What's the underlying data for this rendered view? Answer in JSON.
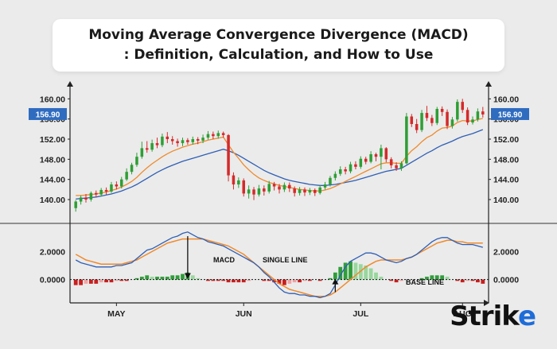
{
  "title": {
    "line1": "Moving Average Convergence Divergence (MACD)",
    "line2": ": Definition, Calculation, and How to Use"
  },
  "logo": {
    "text_main": "Strik",
    "text_accent": "e"
  },
  "colors": {
    "up": "#2e9e35",
    "down": "#d42a2a",
    "fast_line": "#ef8a2c",
    "slow_line": "#2f5fb5",
    "hist_up_strong": "#2f9e3a",
    "hist_up_weak": "#98d79d",
    "hist_down_strong": "#c81f1f",
    "hist_down_weak": "#f2a3a3",
    "badge": "#2f6cc0"
  },
  "chart_data": {
    "type": "candlestick",
    "price_panel": {
      "ylim": [
        137,
        161
      ],
      "left_ticks": [
        "160.00",
        "156.00",
        "152.00",
        "148.00",
        "144.00",
        "140.00"
      ],
      "right_ticks": [
        "160.00",
        "156.00",
        "152.00",
        "148.00",
        "144.00",
        "140.00"
      ],
      "last_price_label": "156.90",
      "candles": [
        [
          138.3,
          139.6,
          139.9,
          137.6
        ],
        [
          139.6,
          140.4,
          140.8,
          139.0
        ],
        [
          140.4,
          140.0,
          141.1,
          139.4
        ],
        [
          140.0,
          141.3,
          141.6,
          139.6
        ],
        [
          141.3,
          141.0,
          141.8,
          140.4
        ],
        [
          141.0,
          141.9,
          142.3,
          140.6
        ],
        [
          141.9,
          141.6,
          142.4,
          141.0
        ],
        [
          141.6,
          143.0,
          143.5,
          141.3
        ],
        [
          143.0,
          142.6,
          143.6,
          142.0
        ],
        [
          142.6,
          144.0,
          144.5,
          142.2
        ],
        [
          144.0,
          145.5,
          146.2,
          143.7
        ],
        [
          145.5,
          146.9,
          147.3,
          145.0
        ],
        [
          146.9,
          148.5,
          149.3,
          146.5
        ],
        [
          148.5,
          150.2,
          151.5,
          148.1
        ],
        [
          150.2,
          149.9,
          151.6,
          149.3
        ],
        [
          149.9,
          151.2,
          151.9,
          149.5
        ],
        [
          151.2,
          150.8,
          152.3,
          150.2
        ],
        [
          150.8,
          152.5,
          153.1,
          150.4
        ],
        [
          152.5,
          152.0,
          153.4,
          151.2
        ],
        [
          152.0,
          151.6,
          152.6,
          150.9
        ],
        [
          151.6,
          151.2,
          152.1,
          150.5
        ],
        [
          151.2,
          151.8,
          152.3,
          150.6
        ],
        [
          151.8,
          151.4,
          152.2,
          150.9
        ],
        [
          151.4,
          152.0,
          152.5,
          150.9
        ],
        [
          152.0,
          151.7,
          152.4,
          151.0
        ],
        [
          151.7,
          152.3,
          152.9,
          151.2
        ],
        [
          152.3,
          153.0,
          153.6,
          151.9
        ],
        [
          153.0,
          152.6,
          153.5,
          152.0
        ],
        [
          152.6,
          153.2,
          153.7,
          152.1
        ],
        [
          153.2,
          152.8,
          153.5,
          152.3
        ],
        [
          152.8,
          144.8,
          153.0,
          143.6
        ],
        [
          144.8,
          143.0,
          145.4,
          142.0
        ],
        [
          143.0,
          143.8,
          144.4,
          142.3
        ],
        [
          143.8,
          141.2,
          144.2,
          140.6
        ],
        [
          141.2,
          142.0,
          142.8,
          140.2
        ],
        [
          142.0,
          141.0,
          142.5,
          139.9
        ],
        [
          141.0,
          142.2,
          142.9,
          140.6
        ],
        [
          142.2,
          141.6,
          142.8,
          140.8
        ],
        [
          141.6,
          143.1,
          143.7,
          141.2
        ],
        [
          143.1,
          142.6,
          143.5,
          141.8
        ],
        [
          142.6,
          142.0,
          143.1,
          141.2
        ],
        [
          142.0,
          142.9,
          143.4,
          141.5
        ],
        [
          142.9,
          142.2,
          143.4,
          141.5
        ],
        [
          142.2,
          141.3,
          142.6,
          140.6
        ],
        [
          141.3,
          142.0,
          142.5,
          140.8
        ],
        [
          142.0,
          141.4,
          142.4,
          140.7
        ],
        [
          141.4,
          141.9,
          142.3,
          140.9
        ],
        [
          141.9,
          141.3,
          142.2,
          140.7
        ],
        [
          141.3,
          142.4,
          142.9,
          141.0
        ],
        [
          142.4,
          143.0,
          143.5,
          142.0
        ],
        [
          143.0,
          144.3,
          144.7,
          142.6
        ],
        [
          144.3,
          145.1,
          145.6,
          143.8
        ],
        [
          145.1,
          146.0,
          146.6,
          144.7
        ],
        [
          146.0,
          145.6,
          146.5,
          145.0
        ],
        [
          145.6,
          147.0,
          147.5,
          145.2
        ],
        [
          147.0,
          146.5,
          147.6,
          146.0
        ],
        [
          146.5,
          148.1,
          148.6,
          146.1
        ],
        [
          148.1,
          147.5,
          148.5,
          147.0
        ],
        [
          147.5,
          149.0,
          149.6,
          147.2
        ],
        [
          149.0,
          148.5,
          149.3,
          147.6
        ],
        [
          148.5,
          150.2,
          150.9,
          146.0
        ],
        [
          150.2,
          148.0,
          150.4,
          147.4
        ],
        [
          148.0,
          146.8,
          148.4,
          146.2
        ],
        [
          146.8,
          146.2,
          147.4,
          145.7
        ],
        [
          146.2,
          147.2,
          147.6,
          145.7
        ],
        [
          147.2,
          156.5,
          157.2,
          147.0
        ],
        [
          156.5,
          155.0,
          157.0,
          154.4
        ],
        [
          155.0,
          153.8,
          156.0,
          153.2
        ],
        [
          153.8,
          157.2,
          157.8,
          153.4
        ],
        [
          157.2,
          156.2,
          158.6,
          155.6
        ],
        [
          156.2,
          155.2,
          156.8,
          154.6
        ],
        [
          155.2,
          158.0,
          158.4,
          154.8
        ],
        [
          158.0,
          157.4,
          158.5,
          156.6
        ],
        [
          157.4,
          154.6,
          157.9,
          154.0
        ],
        [
          154.6,
          155.9,
          156.4,
          154.1
        ],
        [
          155.9,
          159.4,
          159.9,
          155.5
        ],
        [
          159.4,
          157.8,
          160.0,
          157.2
        ],
        [
          157.8,
          155.3,
          158.3,
          154.8
        ],
        [
          155.3,
          155.9,
          156.5,
          154.9
        ],
        [
          155.9,
          157.5,
          158.1,
          155.5
        ],
        [
          157.5,
          156.9,
          158.4,
          156.3
        ]
      ],
      "fast_ma": [
        140.8,
        140.8,
        140.9,
        141.0,
        141.1,
        141.3,
        141.5,
        141.8,
        142.1,
        142.5,
        143.0,
        143.6,
        144.4,
        145.4,
        146.3,
        147.1,
        147.8,
        148.5,
        149.1,
        149.6,
        150.0,
        150.4,
        150.7,
        151.0,
        151.2,
        151.5,
        151.8,
        152.0,
        152.2,
        152.4,
        150.9,
        149.4,
        148.2,
        146.9,
        145.9,
        145.0,
        144.3,
        143.8,
        143.4,
        143.1,
        142.8,
        142.6,
        142.4,
        142.2,
        142.0,
        141.9,
        141.8,
        141.7,
        141.7,
        141.9,
        142.2,
        142.6,
        143.1,
        143.6,
        144.1,
        144.6,
        145.1,
        145.6,
        146.1,
        146.6,
        147.1,
        147.3,
        147.3,
        147.2,
        147.2,
        148.6,
        149.7,
        150.5,
        151.5,
        152.3,
        152.8,
        153.6,
        154.2,
        154.3,
        154.6,
        155.3,
        155.7,
        155.6,
        155.6,
        155.9,
        156.1
      ],
      "slow_ma": [
        140.1,
        140.2,
        140.3,
        140.4,
        140.5,
        140.7,
        140.9,
        141.1,
        141.4,
        141.7,
        142.1,
        142.5,
        143.0,
        143.6,
        144.2,
        144.8,
        145.4,
        145.9,
        146.4,
        146.8,
        147.2,
        147.6,
        147.9,
        148.2,
        148.5,
        148.8,
        149.1,
        149.4,
        149.7,
        150.0,
        149.7,
        149.3,
        148.8,
        148.2,
        147.6,
        147.0,
        146.4,
        145.8,
        145.3,
        144.9,
        144.5,
        144.1,
        143.8,
        143.6,
        143.4,
        143.2,
        143.0,
        142.9,
        142.8,
        142.8,
        142.9,
        143.0,
        143.2,
        143.4,
        143.6,
        143.8,
        144.1,
        144.4,
        144.7,
        145.0,
        145.3,
        145.6,
        145.8,
        146.0,
        146.2,
        146.8,
        147.4,
        148.0,
        148.6,
        149.2,
        149.7,
        150.3,
        150.8,
        151.2,
        151.6,
        152.1,
        152.5,
        152.8,
        153.1,
        153.5,
        153.9
      ]
    },
    "macd_panel": {
      "ylim": [
        -1.5,
        3.5
      ],
      "left_ticks": [
        "2.0000",
        "0.0000"
      ],
      "right_ticks": [
        "2.0000",
        "0.0000"
      ],
      "x_labels": [
        "MAY",
        "JUN",
        "JUL",
        "AUG"
      ],
      "x_label_index": [
        8,
        33,
        56,
        76
      ],
      "macd_line": [
        1.4,
        1.2,
        1.1,
        1.0,
        0.9,
        0.9,
        0.9,
        0.9,
        1.0,
        1.0,
        1.1,
        1.2,
        1.5,
        1.8,
        2.1,
        2.2,
        2.4,
        2.6,
        2.8,
        3.0,
        3.1,
        3.3,
        3.4,
        3.2,
        3.0,
        2.9,
        2.7,
        2.6,
        2.5,
        2.4,
        2.2,
        2.0,
        1.8,
        1.6,
        1.4,
        1.2,
        0.9,
        0.5,
        0.2,
        -0.2,
        -0.6,
        -0.9,
        -1.0,
        -1.0,
        -1.1,
        -1.1,
        -1.2,
        -1.2,
        -1.3,
        -1.2,
        -1.0,
        -0.4,
        0.3,
        0.9,
        1.3,
        1.5,
        1.7,
        1.9,
        1.9,
        1.8,
        1.6,
        1.4,
        1.3,
        1.2,
        1.3,
        1.5,
        1.6,
        1.8,
        2.1,
        2.4,
        2.7,
        2.9,
        3.0,
        3.0,
        2.8,
        2.6,
        2.5,
        2.5,
        2.5,
        2.4,
        2.3
      ],
      "signal_line": [
        1.8,
        1.6,
        1.4,
        1.3,
        1.2,
        1.1,
        1.1,
        1.1,
        1.1,
        1.1,
        1.2,
        1.3,
        1.4,
        1.6,
        1.8,
        2.0,
        2.2,
        2.4,
        2.6,
        2.7,
        2.8,
        2.9,
        2.9,
        2.9,
        2.9,
        2.9,
        2.8,
        2.7,
        2.6,
        2.5,
        2.4,
        2.2,
        2.0,
        1.8,
        1.5,
        1.2,
        0.9,
        0.6,
        0.3,
        0.0,
        -0.3,
        -0.5,
        -0.7,
        -0.8,
        -0.9,
        -1.0,
        -1.1,
        -1.2,
        -1.2,
        -1.2,
        -1.1,
        -0.9,
        -0.6,
        -0.3,
        0.0,
        0.3,
        0.6,
        0.9,
        1.1,
        1.3,
        1.4,
        1.4,
        1.4,
        1.4,
        1.4,
        1.5,
        1.6,
        1.8,
        2.0,
        2.2,
        2.4,
        2.6,
        2.7,
        2.8,
        2.8,
        2.7,
        2.7,
        2.6,
        2.6,
        2.6,
        2.6
      ],
      "histogram": [
        -0.4,
        -0.4,
        -0.3,
        -0.3,
        -0.3,
        -0.2,
        -0.2,
        -0.2,
        -0.1,
        -0.1,
        -0.1,
        0.0,
        0.1,
        0.2,
        0.3,
        0.2,
        0.2,
        0.2,
        0.2,
        0.3,
        0.3,
        0.4,
        0.5,
        0.3,
        0.1,
        0.0,
        -0.1,
        -0.1,
        -0.1,
        -0.1,
        -0.2,
        -0.2,
        -0.2,
        -0.2,
        -0.1,
        0.0,
        0.0,
        -0.1,
        -0.1,
        -0.2,
        -0.3,
        -0.4,
        -0.3,
        -0.2,
        -0.2,
        -0.1,
        -0.1,
        0.0,
        -0.1,
        0.0,
        0.1,
        0.5,
        0.9,
        1.2,
        1.3,
        1.2,
        1.1,
        1.0,
        0.8,
        0.5,
        0.2,
        0.0,
        -0.1,
        -0.2,
        -0.1,
        0.0,
        0.0,
        0.0,
        0.1,
        0.2,
        0.3,
        0.3,
        0.3,
        0.2,
        0.0,
        -0.1,
        -0.2,
        -0.1,
        -0.1,
        -0.2,
        -0.3
      ],
      "annotations": [
        "MACD",
        "SINGLE LINE",
        "BASE LINE"
      ]
    }
  }
}
